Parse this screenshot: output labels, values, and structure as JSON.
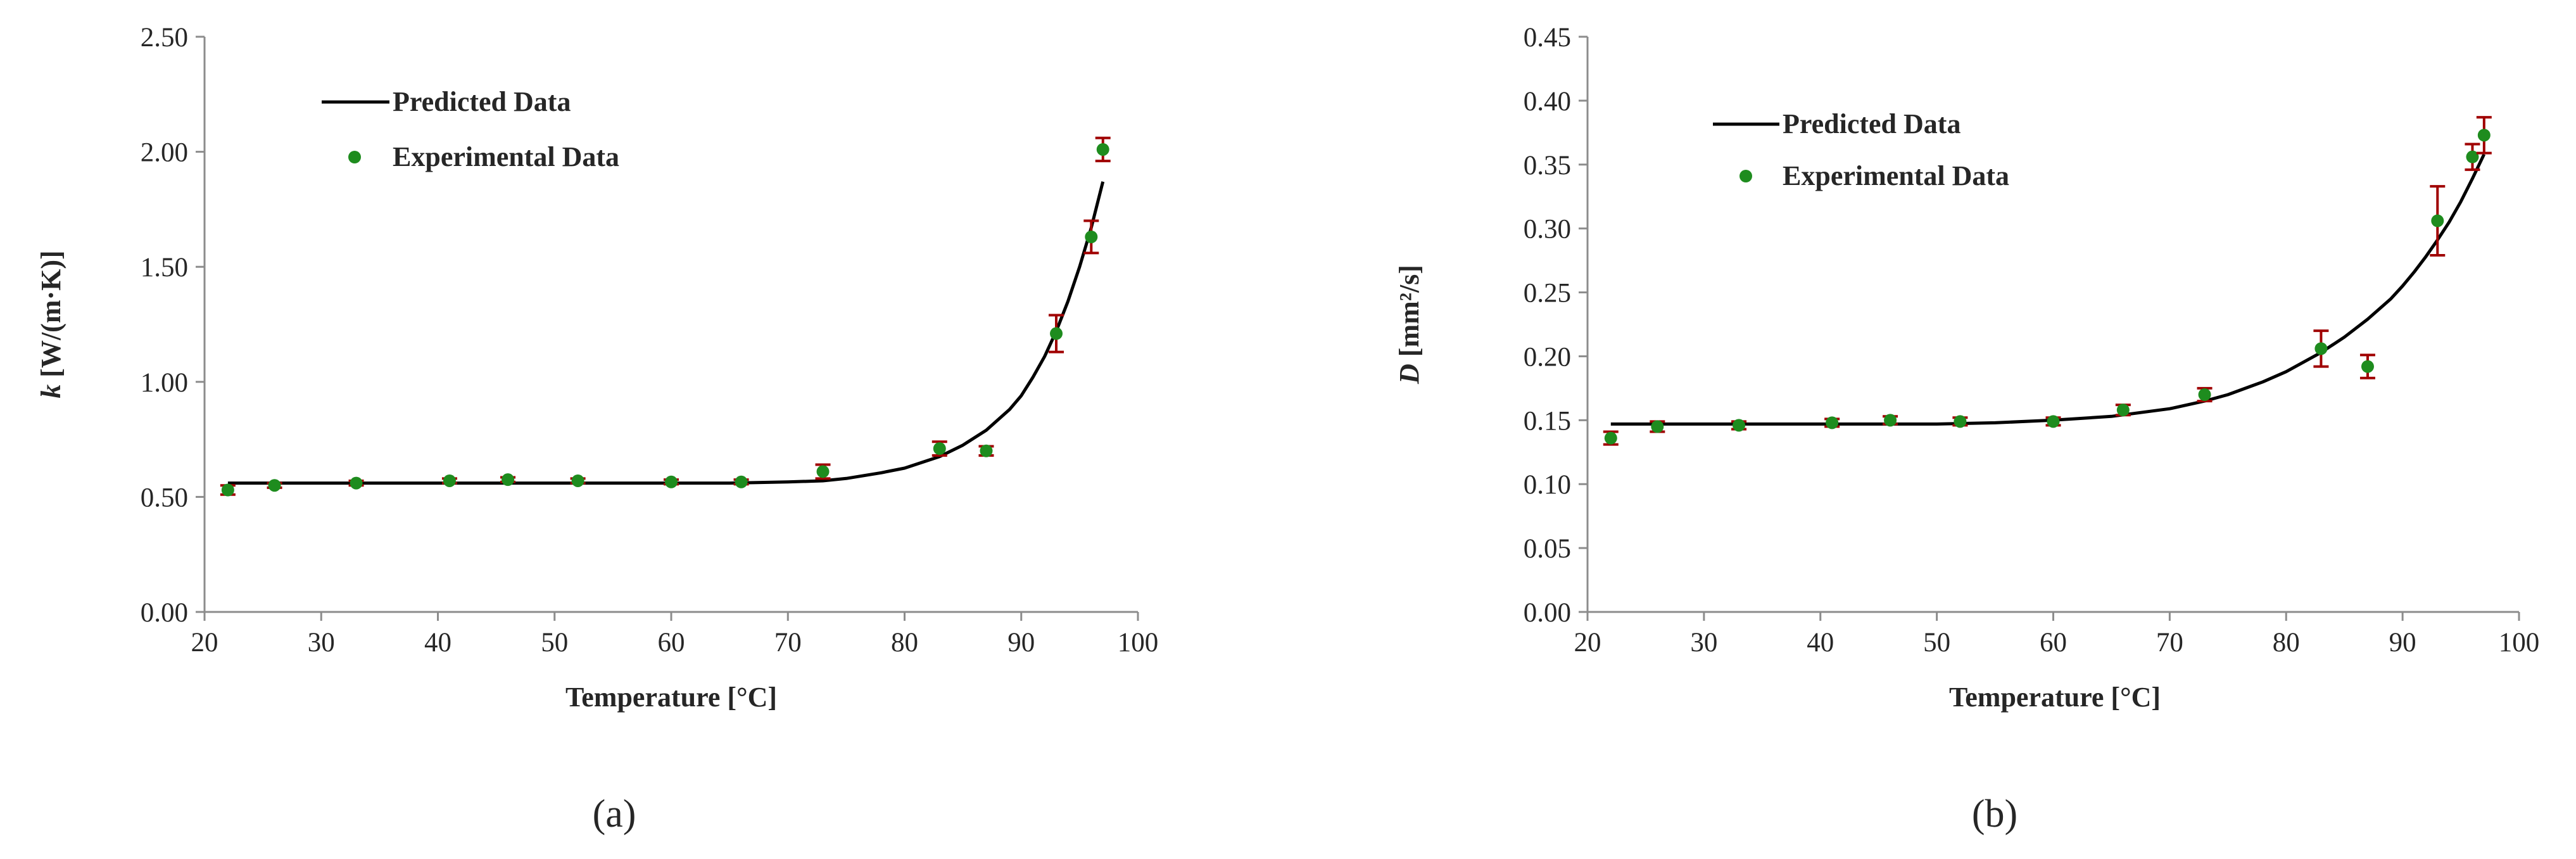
{
  "chart_data": [
    {
      "type": "scatter",
      "panel_label": "(a)",
      "xlabel": "Temperature [°C]",
      "ylabel_var": "k",
      "ylabel_unit": " [W/(m·K)]",
      "xlim": [
        20,
        100
      ],
      "ylim": [
        0,
        2.5
      ],
      "x_ticks": [
        20,
        30,
        40,
        50,
        60,
        70,
        80,
        90,
        100
      ],
      "y_ticks": [
        "0.00",
        "0.50",
        "1.00",
        "1.50",
        "2.00",
        "2.50"
      ],
      "legend": {
        "position": "top-left",
        "entries": [
          "Predicted Data",
          "Experimental Data"
        ]
      },
      "series": [
        {
          "name": "Predicted Data",
          "kind": "line",
          "x": [
            22,
            30,
            40,
            50,
            60,
            65,
            70,
            73,
            75,
            78,
            80,
            83,
            85,
            87,
            89,
            90,
            91,
            92,
            93,
            94,
            95,
            96,
            97
          ],
          "y": [
            0.56,
            0.56,
            0.56,
            0.56,
            0.56,
            0.56,
            0.565,
            0.57,
            0.58,
            0.605,
            0.625,
            0.675,
            0.725,
            0.79,
            0.88,
            0.94,
            1.02,
            1.11,
            1.22,
            1.35,
            1.5,
            1.67,
            1.87
          ]
        },
        {
          "name": "Experimental Data",
          "kind": "points",
          "x": [
            22,
            26,
            33,
            41,
            46,
            52,
            60,
            66,
            73,
            83,
            87,
            93,
            96,
            97
          ],
          "y": [
            0.53,
            0.55,
            0.56,
            0.57,
            0.575,
            0.57,
            0.565,
            0.565,
            0.61,
            0.71,
            0.7,
            1.21,
            1.63,
            2.01
          ],
          "err": [
            0.02,
            0.01,
            0.01,
            0.01,
            0.01,
            0.01,
            0.01,
            0.01,
            0.03,
            0.03,
            0.02,
            0.08,
            0.07,
            0.05
          ]
        }
      ],
      "colors": {
        "line": "#000000",
        "points": "#1e8c1e",
        "errorbars": "#a00000"
      }
    },
    {
      "type": "scatter",
      "panel_label": "(b)",
      "xlabel": "Temperature [°C]",
      "ylabel_var": "D",
      "ylabel_unit": " [mm²/s]",
      "xlim": [
        20,
        100
      ],
      "ylim": [
        0,
        0.45
      ],
      "x_ticks": [
        20,
        30,
        40,
        50,
        60,
        70,
        80,
        90,
        100
      ],
      "y_ticks": [
        "0.00",
        "0.05",
        "0.10",
        "0.15",
        "0.20",
        "0.25",
        "0.30",
        "0.35",
        "0.40",
        "0.45"
      ],
      "legend": {
        "position": "top-left",
        "entries": [
          "Predicted Data",
          "Experimental Data"
        ]
      },
      "series": [
        {
          "name": "Predicted Data",
          "kind": "line",
          "x": [
            22,
            30,
            40,
            50,
            55,
            60,
            65,
            70,
            73,
            75,
            78,
            80,
            83,
            85,
            87,
            89,
            90,
            91,
            92,
            93,
            94,
            95,
            96,
            97
          ],
          "y": [
            0.147,
            0.147,
            0.147,
            0.147,
            0.148,
            0.15,
            0.153,
            0.159,
            0.165,
            0.17,
            0.18,
            0.188,
            0.203,
            0.215,
            0.229,
            0.245,
            0.255,
            0.266,
            0.278,
            0.291,
            0.305,
            0.321,
            0.339,
            0.358
          ]
        },
        {
          "name": "Experimental Data",
          "kind": "points",
          "x": [
            22,
            26,
            33,
            41,
            46,
            52,
            60,
            66,
            73,
            83,
            87,
            93,
            96,
            97
          ],
          "y": [
            0.136,
            0.145,
            0.146,
            0.148,
            0.15,
            0.149,
            0.149,
            0.158,
            0.17,
            0.206,
            0.192,
            0.306,
            0.356,
            0.373
          ],
          "err": [
            0.005,
            0.004,
            0.003,
            0.003,
            0.003,
            0.003,
            0.003,
            0.004,
            0.005,
            0.014,
            0.009,
            0.027,
            0.01,
            0.014
          ]
        }
      ],
      "colors": {
        "line": "#000000",
        "points": "#1e8c1e",
        "errorbars": "#a00000"
      }
    }
  ]
}
